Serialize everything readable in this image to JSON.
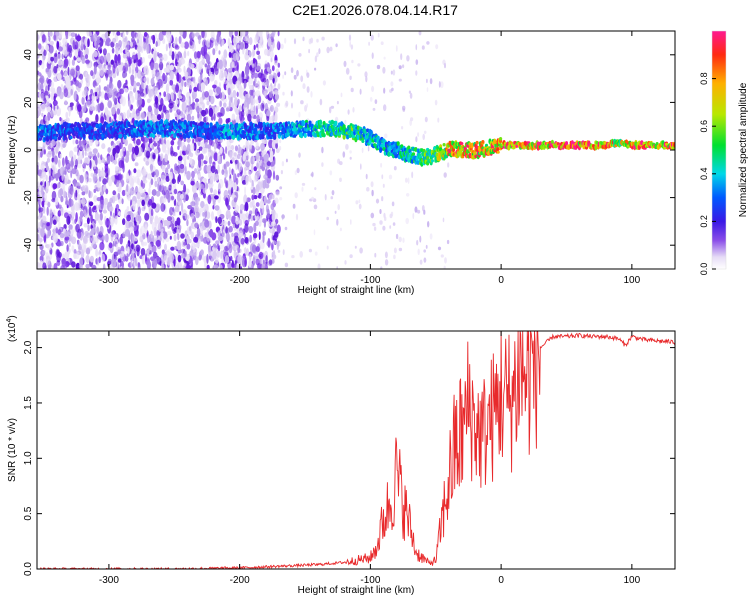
{
  "title": "C2E1.2026.078.04.14.R17",
  "colors": {
    "snr_line": "#e8292b",
    "spectrum_low": "#e6dcf6",
    "spectrum_mid": "#6e18e6",
    "axis": "#000000"
  },
  "chart_data": [
    {
      "type": "heatmap",
      "name": "spectrogram",
      "title": "",
      "xlabel": "Height of straight line (km)",
      "ylabel": "Frequency (Hz)",
      "xlim": [
        -355,
        133
      ],
      "ylim": [
        -50,
        50
      ],
      "xticks": [
        -300,
        -200,
        -100,
        0,
        100
      ],
      "xtick_labels": [
        "-300",
        "-200",
        "-100",
        "0",
        "100"
      ],
      "yticks": [
        -40,
        -20,
        0,
        20,
        40
      ],
      "ytick_labels": [
        "-40",
        "-20",
        "0",
        "20",
        "40"
      ],
      "colorbar": {
        "label": "Normalized spectral amplitude",
        "range": [
          0,
          1
        ],
        "ticks": [
          0.0,
          0.2,
          0.4,
          0.6,
          0.8
        ],
        "tick_labels": [
          "0.0",
          "0.2",
          "0.4",
          "0.6",
          "0.8"
        ]
      },
      "ridge": {
        "description": "dominant frequency track",
        "x": [
          -355,
          -330,
          -300,
          -270,
          -250,
          -220,
          -210,
          -190,
          -170,
          -150,
          -130,
          -115,
          -100,
          -90,
          -80,
          -70,
          -60,
          -50,
          -40,
          -30,
          -20,
          -10,
          0,
          20,
          50,
          80,
          90,
          100,
          133
        ],
        "y": [
          7,
          8,
          8,
          9,
          9,
          8,
          8,
          8,
          8,
          9,
          9,
          8,
          5,
          2,
          0,
          -2,
          -3,
          -2,
          0,
          0,
          0,
          1,
          2,
          2,
          2,
          2,
          3,
          2,
          2
        ],
        "amplitude": [
          0.35,
          0.3,
          0.3,
          0.35,
          0.35,
          0.3,
          0.4,
          0.35,
          0.35,
          0.45,
          0.5,
          0.55,
          0.45,
          0.45,
          0.45,
          0.5,
          0.55,
          0.6,
          0.85,
          0.9,
          0.85,
          0.85,
          0.9,
          0.92,
          0.95,
          0.95,
          0.7,
          0.9,
          0.9
        ]
      }
    },
    {
      "type": "line",
      "name": "snr",
      "title": "",
      "xlabel": "Height of straight line (km)",
      "ylabel": "SNR (10 * v/v)",
      "y_multiplier_label": "(x10",
      "y_multiplier_exp": "4",
      "y_multiplier_close": ")",
      "xlim": [
        -355,
        133
      ],
      "ylim": [
        0.0,
        2.15
      ],
      "xticks": [
        -300,
        -200,
        -100,
        0,
        100
      ],
      "xtick_labels": [
        "-300",
        "-200",
        "-100",
        "0",
        "100"
      ],
      "yticks": [
        0.0,
        0.5,
        1.0,
        1.5,
        2.0
      ],
      "ytick_labels": [
        "0.0",
        "0.5",
        "1.0",
        "1.5",
        "2.0"
      ],
      "series": [
        {
          "name": "SNR",
          "x": [
            -355,
            -300,
            -250,
            -200,
            -160,
            -140,
            -120,
            -110,
            -100,
            -95,
            -90,
            -85,
            -80,
            -75,
            -70,
            -65,
            -60,
            -55,
            -50,
            -45,
            -40,
            -35,
            -30,
            -25,
            -20,
            -15,
            -10,
            -5,
            0,
            5,
            10,
            15,
            20,
            25,
            30,
            35,
            40,
            50,
            60,
            70,
            80,
            90,
            95,
            100,
            110,
            120,
            133
          ],
          "y": [
            0.0,
            0.0,
            0.0,
            0.01,
            0.03,
            0.04,
            0.06,
            0.08,
            0.1,
            0.2,
            0.45,
            0.6,
            0.85,
            0.6,
            0.4,
            0.15,
            0.1,
            0.05,
            0.08,
            0.45,
            0.8,
            1.1,
            1.2,
            1.5,
            1.3,
            1.2,
            1.3,
            1.4,
            1.6,
            1.5,
            1.6,
            1.85,
            1.7,
            1.9,
            2.0,
            2.05,
            2.1,
            2.1,
            2.11,
            2.1,
            2.1,
            2.08,
            2.02,
            2.1,
            2.07,
            2.06,
            2.05
          ]
        }
      ]
    }
  ]
}
